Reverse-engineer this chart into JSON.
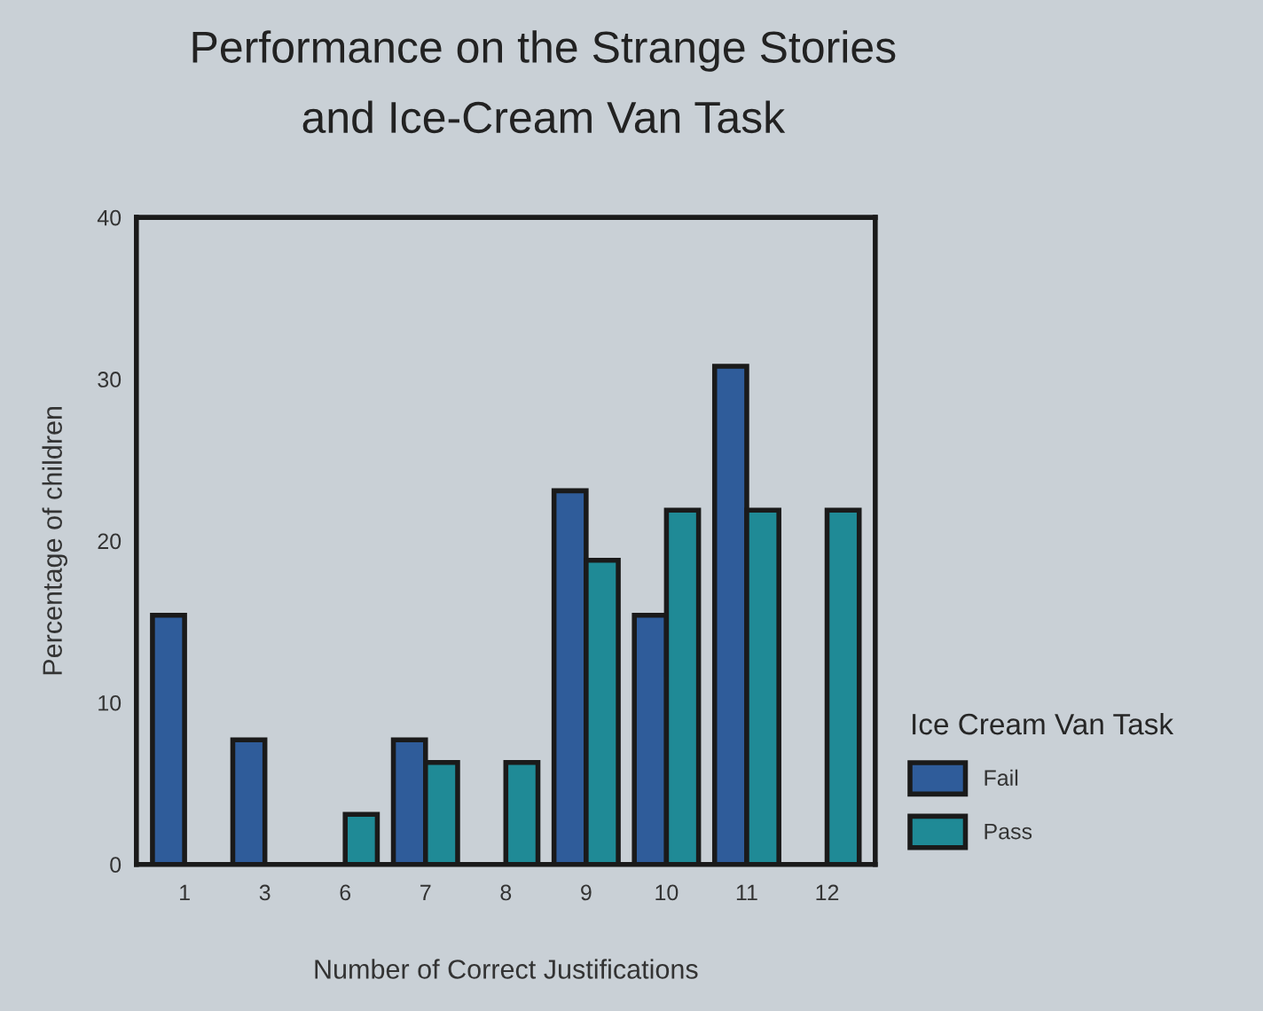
{
  "chart_data": {
    "type": "bar",
    "title": "Performance on the Strange Stories\nand Ice-Cream Van Task",
    "xlabel": "Number of Correct Justifications",
    "ylabel": "Percentage of children",
    "legend_title": "Ice Cream Van Task",
    "categories": [
      "1",
      "3",
      "6",
      "7",
      "8",
      "9",
      "10",
      "11",
      "12"
    ],
    "series": [
      {
        "name": "Fail",
        "color": "#2f5c9a",
        "values": [
          15.4,
          7.7,
          null,
          7.7,
          null,
          23.1,
          15.4,
          30.8,
          null
        ]
      },
      {
        "name": "Pass",
        "color": "#1f8a96",
        "values": [
          null,
          null,
          3.1,
          6.3,
          6.3,
          18.8,
          21.9,
          21.9,
          21.9
        ]
      }
    ],
    "ylim": [
      0,
      40
    ],
    "yticks": [
      0,
      10,
      20,
      30,
      40
    ],
    "grid": false,
    "legend": "right"
  }
}
